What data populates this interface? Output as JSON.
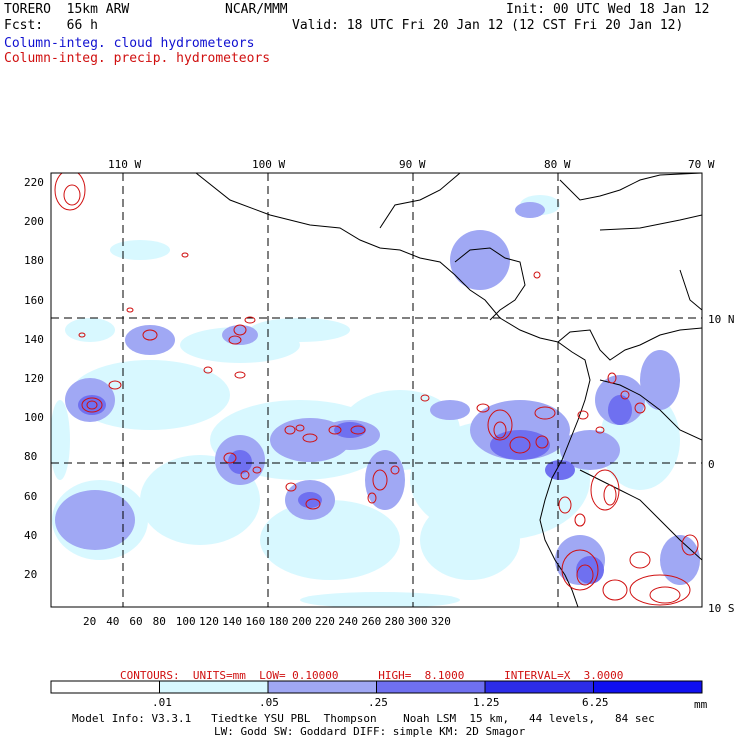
{
  "header": {
    "model": "TORERO  15km ARW",
    "org": "NCAR/MMM",
    "init": "Init: 00 UTC Wed 18 Jan 12",
    "fcst": "Fcst:   66 h",
    "valid": "Valid: 18 UTC Fri 20 Jan 12 (12 CST Fri 20 Jan 12)",
    "field1": "Column-integ. cloud hydrometeors",
    "field2": "Column-integ. precip. hydrometeors"
  },
  "map": {
    "lon_labels": [
      "110 W",
      "100 W",
      "90 W",
      "80 W",
      "70 W"
    ],
    "lat_labels": [
      "10 N",
      "0",
      "10 S"
    ],
    "x_ticks": [
      "20",
      "40",
      "60",
      "80",
      "100",
      "120",
      "140",
      "160",
      "180",
      "200",
      "220",
      "240",
      "260",
      "280",
      "300",
      "320"
    ],
    "y_ticks": [
      "220",
      "200",
      "180",
      "160",
      "140",
      "120",
      "100",
      "80",
      "60",
      "40",
      "20"
    ]
  },
  "contours": {
    "text": "CONTOURS:  UNITS=mm  LOW= 0.10000      HIGH=  8.1000      INTERVAL=X  3.0000",
    "color": "#d01010"
  },
  "colorbar": {
    "labels": [
      ".01",
      ".05",
      ".25",
      "1.25",
      "6.25"
    ],
    "unit": "mm",
    "colors": [
      "#ffffff",
      "#d8f8ff",
      "#a0a8f4",
      "#6f70f0",
      "#2c2ce8",
      "#1010f0"
    ]
  },
  "footer": {
    "line1": "Model Info: V3.3.1   Tiedtke YSU PBL  Thompson    Noah LSM  15 km,   44 levels,   84 sec",
    "line2": "LW: Godd SW: Goddard DIFF: simple KM: 2D Smagor"
  }
}
